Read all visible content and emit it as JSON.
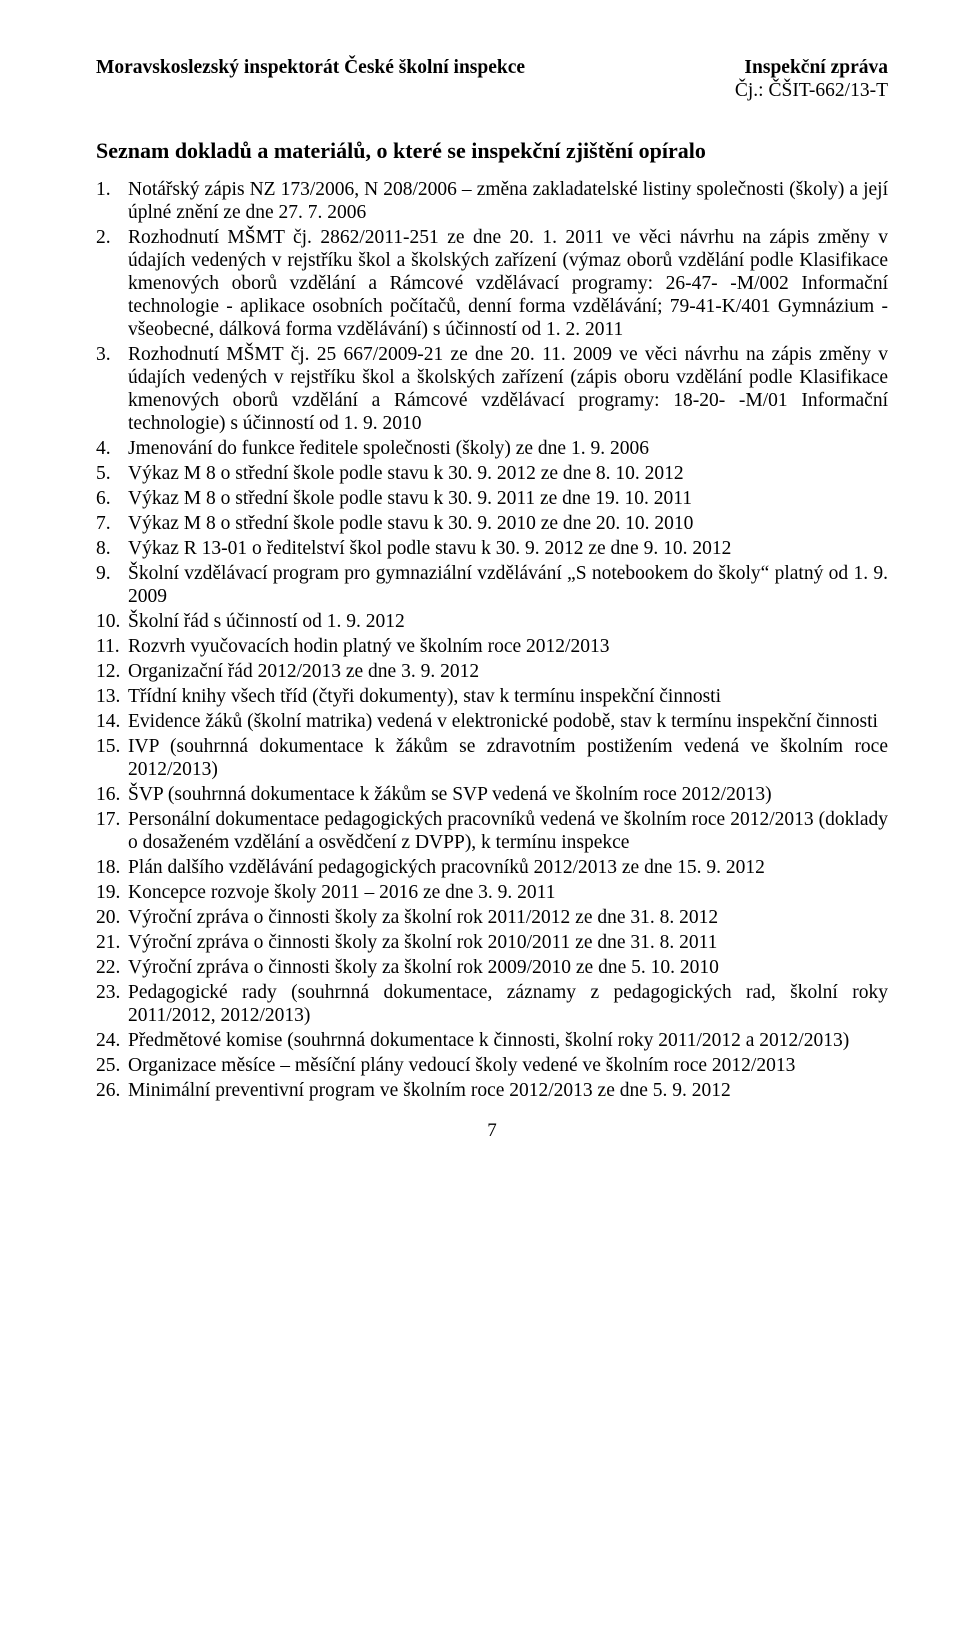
{
  "header": {
    "left": "Moravskoslezský inspektorát České školní inspekce",
    "right_title": "Inspekční zpráva",
    "right_sub": "Čj.: ČŠIT-662/13-T"
  },
  "section_title": "Seznam dokladů a materiálů, o které se inspekční zjištění opíralo",
  "items": [
    "Notářský zápis NZ 173/2006, N 208/2006 – změna zakladatelské listiny společnosti (školy) a její úplné znění ze dne 27. 7. 2006",
    "Rozhodnutí MŠMT čj. 2862/2011-251 ze dne 20. 1. 2011 ve věci návrhu na zápis změny v údajích vedených v rejstříku škol a školských zařízení (výmaz oborů vzdělání podle Klasifikace kmenových oborů vzdělání a Rámcové vzdělávací programy: 26-47- -M/002 Informační technologie - aplikace osobních počítačů, denní forma vzdělávání; 79-41-K/401 Gymnázium - všeobecné, dálková forma vzdělávání) s účinností od 1. 2. 2011",
    "Rozhodnutí MŠMT čj. 25 667/2009-21 ze dne 20. 11. 2009 ve věci návrhu na zápis změny v údajích vedených v rejstříku škol a školských zařízení (zápis oboru vzdělání podle Klasifikace kmenových oborů vzdělání a Rámcové vzdělávací programy: 18-20- -M/01 Informační technologie) s účinností od 1. 9. 2010",
    "Jmenování do funkce ředitele společnosti (školy) ze dne 1. 9. 2006",
    "Výkaz M 8 o střední škole podle stavu k 30. 9. 2012 ze dne 8. 10. 2012",
    "Výkaz M 8 o střední škole podle stavu k 30. 9. 2011 ze dne 19. 10. 2011",
    "Výkaz M 8 o střední škole podle stavu k 30. 9. 2010 ze dne 20. 10. 2010",
    "Výkaz R 13-01 o ředitelství škol podle stavu k 30. 9. 2012 ze dne 9. 10. 2012",
    "Školní vzdělávací program pro gymnaziální vzdělávání „S notebookem do školy“ platný od 1. 9. 2009",
    "Školní řád s účinností od 1. 9. 2012",
    "Rozvrh vyučovacích hodin platný ve školním roce 2012/2013",
    "Organizační řád 2012/2013 ze dne 3. 9. 2012",
    "Třídní knihy všech tříd (čtyři dokumenty), stav k termínu inspekční činnosti",
    "Evidence žáků (školní matrika) vedená v elektronické podobě, stav k termínu inspekční činnosti",
    "IVP (souhrnná dokumentace k žákům se zdravotním postižením vedená ve školním roce 2012/2013)",
    "ŠVP (souhrnná dokumentace k žákům se SVP vedená ve školním roce 2012/2013)",
    "Personální dokumentace pedagogických pracovníků vedená ve školním roce 2012/2013 (doklady o dosaženém vzdělání a osvědčení z DVPP), k termínu inspekce",
    "Plán dalšího vzdělávání pedagogických pracovníků 2012/2013 ze dne 15. 9. 2012",
    "Koncepce rozvoje školy 2011 – 2016 ze dne 3. 9. 2011",
    "Výroční zpráva o činnosti školy za školní rok 2011/2012 ze dne 31. 8. 2012",
    "Výroční zpráva o činnosti školy za školní rok 2010/2011 ze dne 31. 8. 2011",
    "Výroční zpráva o činnosti školy za školní rok 2009/2010 ze dne 5. 10. 2010",
    "Pedagogické rady (souhrnná dokumentace, záznamy z pedagogických rad, školní roky 2011/2012, 2012/2013)",
    "Předmětové komise (souhrnná dokumentace k činnosti, školní roky 2011/2012 a 2012/2013)",
    "Organizace měsíce – měsíční plány vedoucí školy vedené ve školním roce 2012/2013",
    "Minimální preventivní program ve školním roce 2012/2013 ze dne 5. 9. 2012"
  ],
  "page_number": "7"
}
